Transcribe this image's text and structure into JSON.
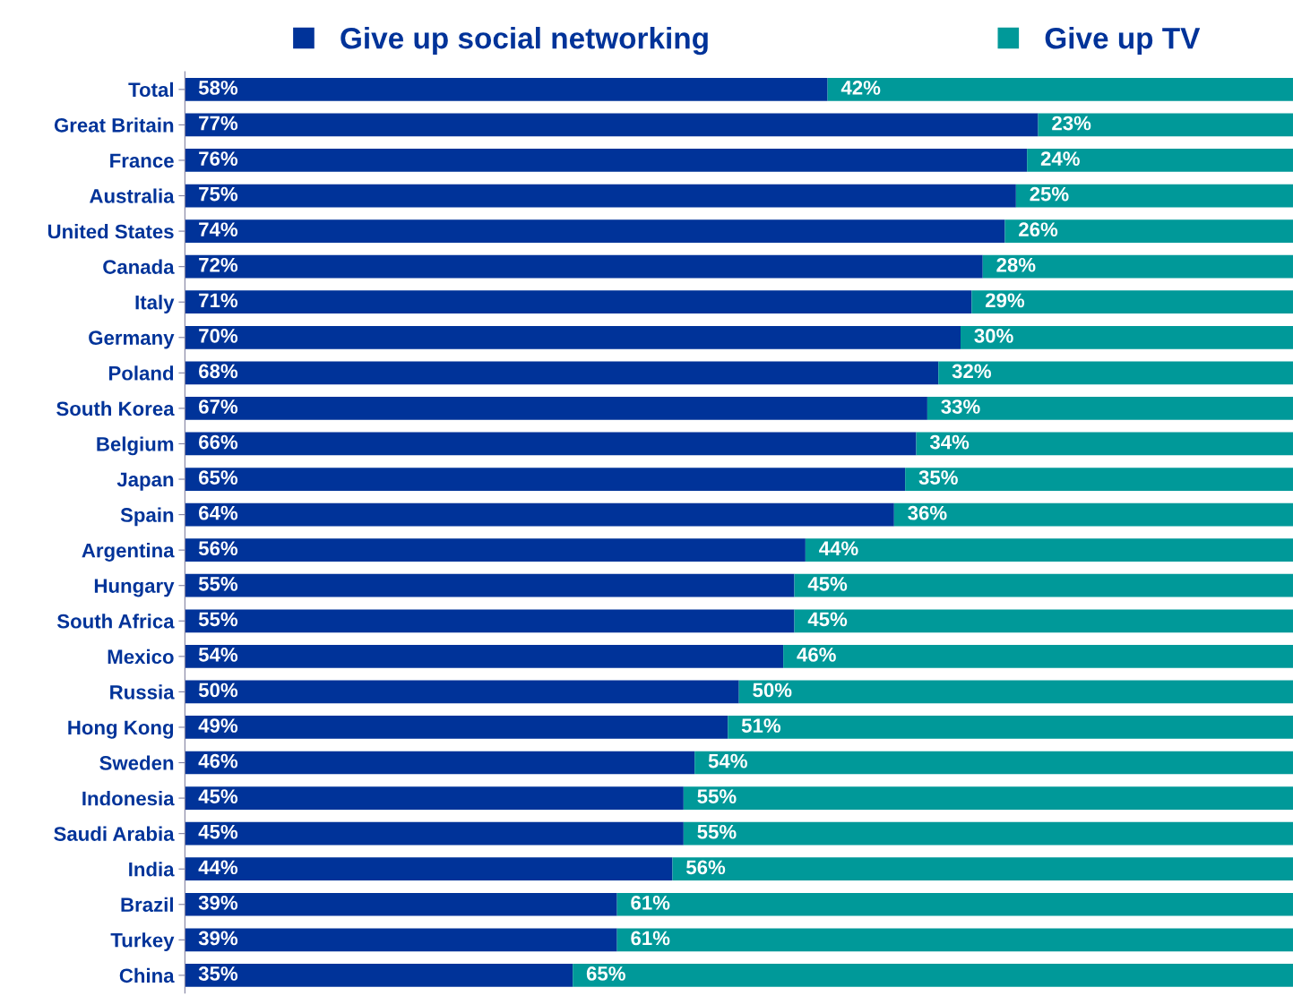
{
  "chart_data": {
    "type": "bar",
    "orientation": "horizontal",
    "stacked": true,
    "legend": "top",
    "grid": false,
    "tick_labels": "y",
    "xlim": [
      0,
      100
    ],
    "categories": [
      "Total",
      "Great Britain",
      "France",
      "Australia",
      "United States",
      "Canada",
      "Italy",
      "Germany",
      "Poland",
      "South Korea",
      "Belgium",
      "Japan",
      "Spain",
      "Argentina",
      "Hungary",
      "South Africa",
      "Mexico",
      "Russia",
      "Hong Kong",
      "Sweden",
      "Indonesia",
      "Saudi Arabia",
      "India",
      "Brazil",
      "Turkey",
      "China"
    ],
    "series": [
      {
        "name": "Give up social networking",
        "color": "#003399",
        "values": [
          58,
          77,
          76,
          75,
          74,
          72,
          71,
          70,
          68,
          67,
          66,
          65,
          64,
          56,
          55,
          55,
          54,
          50,
          49,
          46,
          45,
          45,
          44,
          39,
          39,
          35
        ],
        "value_labels": [
          "58%",
          "77%",
          "76%",
          "75%",
          "74%",
          "72%",
          "71%",
          "70%",
          "68%",
          "67%",
          "66%",
          "65%",
          "64%",
          "56%",
          "55%",
          "55%",
          "54%",
          "50%",
          "49%",
          "46%",
          "45%",
          "45%",
          "44%",
          "39%",
          "39%",
          "35%"
        ]
      },
      {
        "name": "Give up TV",
        "color": "#009999",
        "values": [
          42,
          23,
          24,
          25,
          26,
          28,
          29,
          30,
          32,
          33,
          34,
          35,
          36,
          44,
          45,
          45,
          46,
          50,
          51,
          54,
          55,
          55,
          56,
          61,
          61,
          65
        ],
        "value_labels": [
          "42%",
          "23%",
          "24%",
          "25%",
          "26%",
          "28%",
          "29%",
          "30%",
          "32%",
          "33%",
          "34%",
          "35%",
          "36%",
          "44%",
          "45%",
          "45%",
          "46%",
          "50%",
          "51%",
          "54%",
          "55%",
          "55%",
          "56%",
          "61%",
          "61%",
          "65%"
        ]
      }
    ]
  }
}
